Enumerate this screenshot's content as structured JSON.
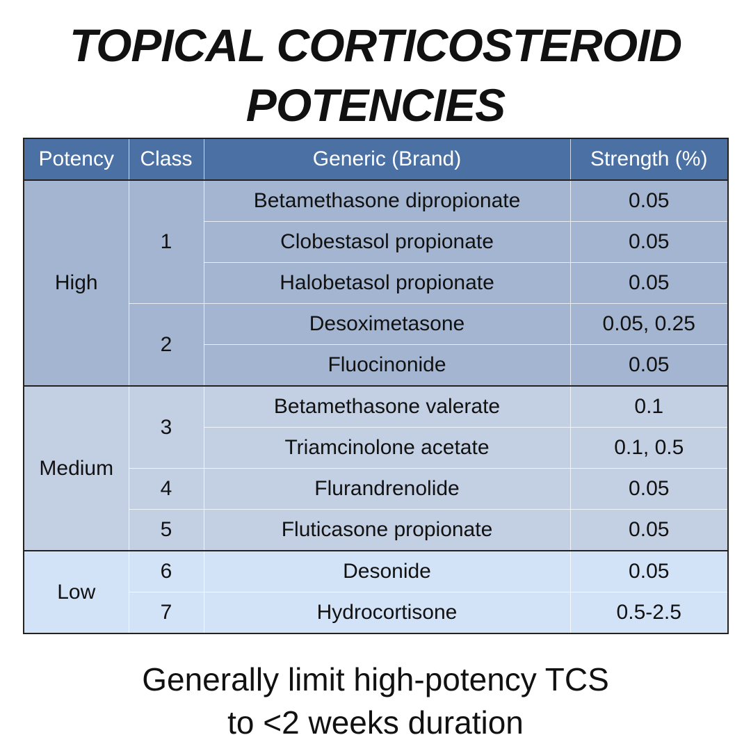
{
  "title_lines": [
    "TOPICAL CORTICOSTEROID",
    "POTENCIES"
  ],
  "table": {
    "headers": [
      "Potency",
      "Class",
      "Generic (Brand)",
      "Strength (%)"
    ],
    "groups": [
      {
        "potency": "High",
        "classes": [
          {
            "class": "1",
            "rows": [
              [
                "Betamethasone dipropionate",
                "0.05"
              ],
              [
                "Clobestasol propionate",
                "0.05"
              ],
              [
                "Halobetasol propionate",
                "0.05"
              ]
            ]
          },
          {
            "class": "2",
            "rows": [
              [
                "Desoximetasone",
                "0.05, 0.25"
              ],
              [
                "Fluocinonide",
                "0.05"
              ]
            ]
          }
        ]
      },
      {
        "potency": "Medium",
        "classes": [
          {
            "class": "3",
            "rows": [
              [
                "Betamethasone valerate",
                "0.1"
              ],
              [
                "Triamcinolone acetate",
                "0.1, 0.5"
              ]
            ]
          },
          {
            "class": "4",
            "rows": [
              [
                "Flurandrenolide",
                "0.05"
              ]
            ]
          },
          {
            "class": "5",
            "rows": [
              [
                "Fluticasone propionate",
                "0.05"
              ]
            ]
          }
        ]
      },
      {
        "potency": "Low",
        "classes": [
          {
            "class": "6",
            "rows": [
              [
                "Desonide",
                "0.05"
              ]
            ]
          },
          {
            "class": "7",
            "rows": [
              [
                "Hydrocortisone",
                "0.5-2.5"
              ]
            ]
          }
        ]
      }
    ]
  },
  "footer_lines": [
    "Generally limit high-potency TCS",
    "to <2 weeks duration"
  ]
}
